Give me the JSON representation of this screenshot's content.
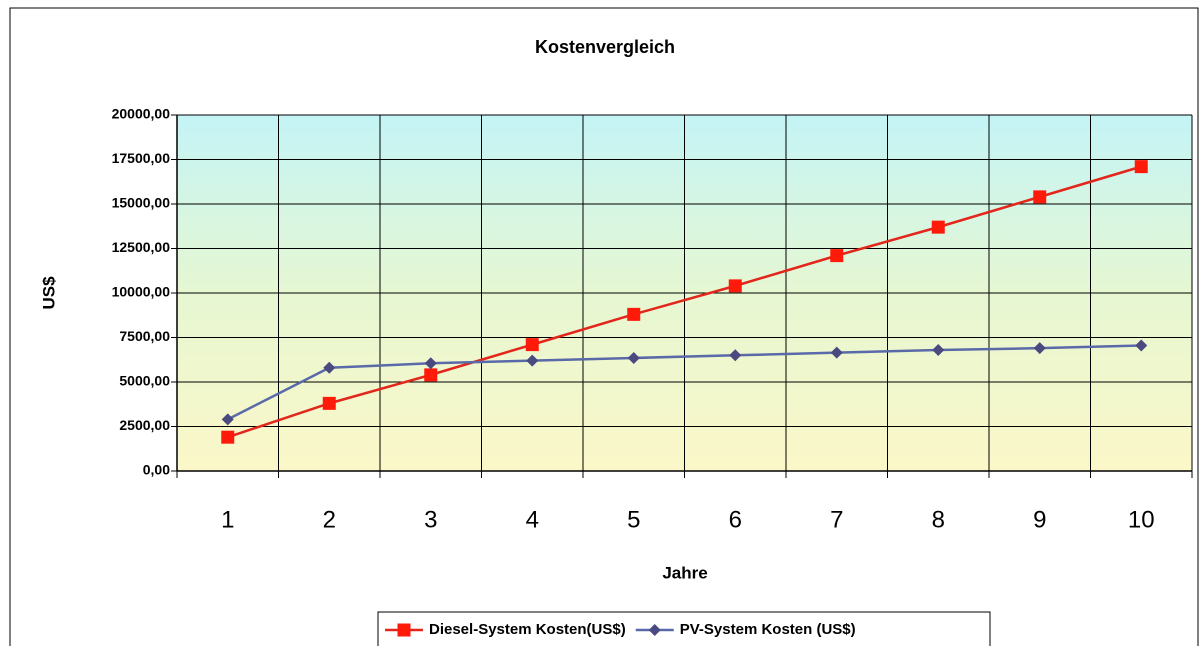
{
  "chart_data": {
    "type": "line",
    "title": "Kostenvergleich",
    "x_label": "Jahre",
    "y_label": "US$",
    "categories": [
      "1",
      "2",
      "3",
      "4",
      "5",
      "6",
      "7",
      "8",
      "9",
      "10"
    ],
    "series": [
      {
        "name": "Diesel-System Kosten(US$)",
        "color": "#e3261c",
        "marker_color": "#ff1a0a",
        "marker": "square",
        "values": [
          1900,
          3800,
          5400,
          7100,
          8800,
          10400,
          12100,
          13700,
          15400,
          17100
        ]
      },
      {
        "name": "PV-System Kosten (US$)",
        "color": "#5a6aa8",
        "marker_color": "#4a4a80",
        "marker": "diamond",
        "values": [
          2900,
          5800,
          6050,
          6200,
          6350,
          6500,
          6650,
          6800,
          6900,
          7050
        ]
      }
    ],
    "ylim": [
      0,
      20000
    ],
    "yticks": [
      {
        "value": 0,
        "label": "0,00"
      },
      {
        "value": 2500,
        "label": "2500,00"
      },
      {
        "value": 5000,
        "label": "5000,00"
      },
      {
        "value": 7500,
        "label": "7500,00"
      },
      {
        "value": 10000,
        "label": "10000,00"
      },
      {
        "value": 12500,
        "label": "12500,00"
      },
      {
        "value": 15000,
        "label": "15000,00"
      },
      {
        "value": 17500,
        "label": "17500,00"
      },
      {
        "value": 20000,
        "label": "20000,00"
      }
    ],
    "grid": true,
    "legend": "bottom"
  }
}
